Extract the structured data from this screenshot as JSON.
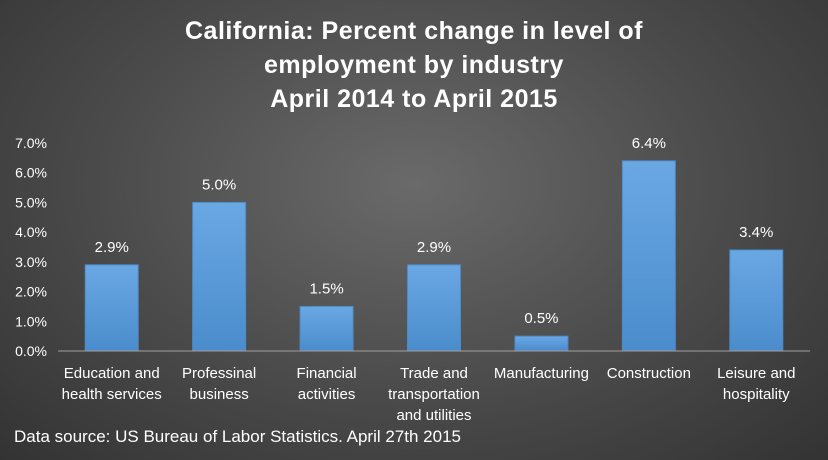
{
  "chart_data": {
    "type": "bar",
    "title_lines": [
      "California: Percent change in level of",
      "employment by industry",
      "April 2014 to April 2015"
    ],
    "categories": [
      [
        "Education and",
        "health services"
      ],
      [
        "Professinal",
        "business"
      ],
      [
        "Financial",
        "activities"
      ],
      [
        "Trade and",
        "transportation",
        "and utilities"
      ],
      [
        "Manufacturing"
      ],
      [
        "Construction"
      ],
      [
        "Leisure and",
        "hospitality"
      ]
    ],
    "values": [
      2.9,
      5.0,
      1.5,
      2.9,
      0.5,
      6.4,
      3.4
    ],
    "data_labels": [
      "2.9%",
      "5.0%",
      "1.5%",
      "2.9%",
      "0.5%",
      "6.4%",
      "3.4%"
    ],
    "y_ticks": [
      "0.0%",
      "1.0%",
      "2.0%",
      "3.0%",
      "4.0%",
      "5.0%",
      "6.0%",
      "7.0%"
    ],
    "ylim": [
      0,
      7
    ],
    "grid": false,
    "bar_color": "#5b9bd5"
  },
  "footer": {
    "source": "Data source: US Bureau of Labor Statistics. April 27th 2015"
  }
}
